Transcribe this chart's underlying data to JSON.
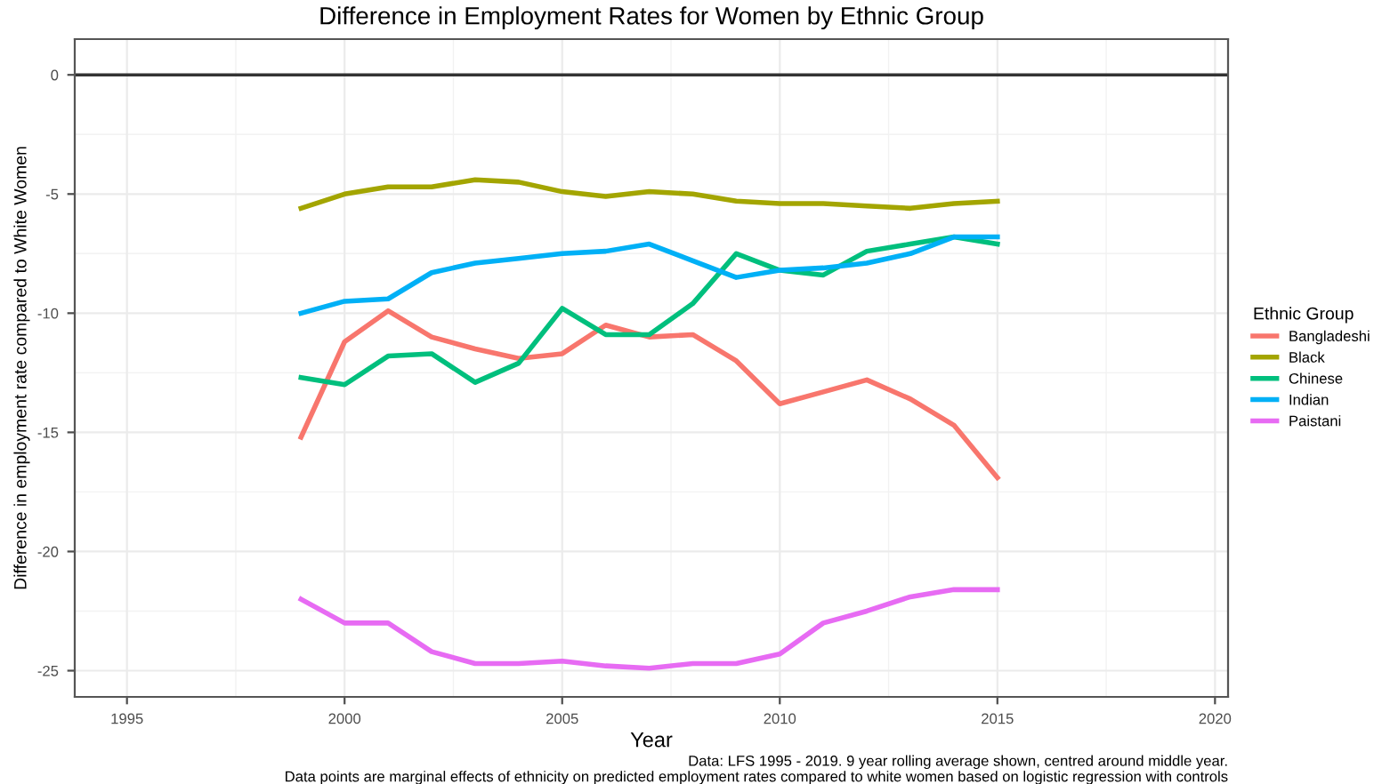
{
  "chart_data": {
    "type": "line",
    "title": "Difference in Employment Rates for Women by Ethnic Group",
    "xlabel": "Year",
    "ylabel": "Difference in employment rate compared to White Women",
    "legend_title": "Ethnic Group",
    "legend": "right",
    "x": [
      1999,
      2000,
      2001,
      2002,
      2003,
      2004,
      2005,
      2006,
      2007,
      2008,
      2009,
      2010,
      2011,
      2012,
      2013,
      2014,
      2015
    ],
    "series": [
      {
        "name": "Bangladeshi",
        "color": "#f8766d",
        "values": [
          -15.2,
          -11.2,
          -9.9,
          -11.0,
          -11.5,
          -11.9,
          -11.7,
          -10.5,
          -11.0,
          -10.9,
          -12.0,
          -13.8,
          -13.3,
          -12.8,
          -13.6,
          -14.7,
          -16.9
        ]
      },
      {
        "name": "Black",
        "color": "#a3a500",
        "values": [
          -5.6,
          -5.0,
          -4.7,
          -4.7,
          -4.4,
          -4.5,
          -4.9,
          -5.1,
          -4.9,
          -5.0,
          -5.3,
          -5.4,
          -5.4,
          -5.5,
          -5.6,
          -5.4,
          -5.3
        ]
      },
      {
        "name": "Chinese",
        "color": "#00bf7d",
        "values": [
          -12.7,
          -13.0,
          -11.8,
          -11.7,
          -12.9,
          -12.1,
          -9.8,
          -10.9,
          -10.9,
          -9.6,
          -7.5,
          -8.2,
          -8.4,
          -7.4,
          -7.1,
          -6.8,
          -7.1
        ]
      },
      {
        "name": "Indian",
        "color": "#00b0f6",
        "values": [
          -10.0,
          -9.5,
          -9.4,
          -8.3,
          -7.9,
          -7.7,
          -7.5,
          -7.4,
          -7.1,
          -7.8,
          -8.5,
          -8.2,
          -8.1,
          -7.9,
          -7.5,
          -6.8,
          -6.8
        ]
      },
      {
        "name": "Paistani",
        "color": "#e76bf3",
        "values": [
          -22.0,
          -23.0,
          -23.0,
          -24.2,
          -24.7,
          -24.7,
          -24.6,
          -24.8,
          -24.9,
          -24.7,
          -24.7,
          -24.3,
          -23.0,
          -22.5,
          -21.9,
          -21.6,
          -21.6
        ]
      }
    ],
    "xlim": [
      1993.8,
      2020.3
    ],
    "xticks": [
      1995,
      2000,
      2005,
      2010,
      2015,
      2020
    ],
    "ylim": [
      -26.1,
      1.5
    ],
    "yticks": [
      -25,
      -20,
      -15,
      -10,
      -5,
      0
    ],
    "grid": true,
    "marker": "none",
    "line_style": "solid",
    "ref_lines": [
      {
        "axis": "y",
        "value": 0,
        "label": null,
        "color": "#333333"
      }
    ],
    "annotations": [
      "Data: LFS 1995 - 2019. 9 year rolling average shown, centred around middle year.",
      "Data points are marginal effects of ethnicity on predicted employment rates compared to white women based on logistic regression with controls"
    ]
  }
}
